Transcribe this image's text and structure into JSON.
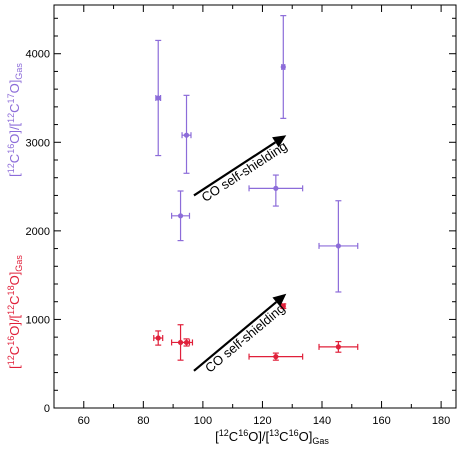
{
  "chart_data": {
    "type": "scatter",
    "xlabel": {
      "base": "[",
      "sup1": "12",
      "mid1": "C",
      "sup2": "16",
      "mid2": "O]/[",
      "sup3": "13",
      "mid3": "C",
      "sup4": "16",
      "mid4": "O]",
      "sub": "Gas"
    },
    "ylabel_purple": {
      "base": "[",
      "sup1": "12",
      "mid1": "C",
      "sup2": "16",
      "mid2": "O]/[",
      "sup3": "12",
      "mid3": "C",
      "sup4": "17",
      "mid4": "O]",
      "sub": "Gas"
    },
    "ylabel_red": {
      "base": "[",
      "sup1": "12",
      "mid1": "C",
      "sup2": "16",
      "mid2": "O]/[",
      "sup3": "12",
      "mid3": "C",
      "sup4": "18",
      "mid4": "O]",
      "sub": "Gas"
    },
    "xlim": [
      50,
      185
    ],
    "ylim": [
      0,
      4550
    ],
    "x_ticks": [
      60,
      80,
      100,
      120,
      140,
      160,
      180
    ],
    "y_ticks": [
      0,
      1000,
      2000,
      3000,
      4000
    ],
    "colors": {
      "purple": "#8c6cd9",
      "red": "#e0203a",
      "axis": "#000000",
      "arrow": "#000000"
    },
    "series": [
      {
        "color": "purple",
        "points": [
          {
            "x": 85,
            "y": 3500,
            "xerr": [
              0.8,
              0.8
            ],
            "yerr": [
              650,
              650
            ]
          },
          {
            "x": 94.5,
            "y": 3080,
            "xerr": [
              1.5,
              1.5
            ],
            "yerr": [
              430,
              450
            ]
          },
          {
            "x": 127,
            "y": 3850,
            "xerr": [
              0.5,
              0.5
            ],
            "yerr": [
              580,
              580
            ]
          },
          {
            "x": 92.5,
            "y": 2170,
            "xerr": [
              3,
              3
            ],
            "yerr": [
              280,
              280
            ]
          },
          {
            "x": 124.5,
            "y": 2480,
            "xerr": [
              9,
              9
            ],
            "yerr": [
              200,
              150
            ]
          },
          {
            "x": 145.5,
            "y": 1830,
            "xerr": [
              6.5,
              6.5
            ],
            "yerr": [
              520,
              510
            ]
          }
        ]
      },
      {
        "color": "red",
        "points": [
          {
            "x": 85,
            "y": 790,
            "xerr": [
              1.5,
              1.5
            ],
            "yerr": [
              80,
              80
            ]
          },
          {
            "x": 92.5,
            "y": 740,
            "xerr": [
              3,
              3
            ],
            "yerr": [
              200,
              200
            ]
          },
          {
            "x": 94.5,
            "y": 740,
            "xerr": [
              2,
              2
            ],
            "yerr": [
              40,
              40
            ]
          },
          {
            "x": 127,
            "y": 1150,
            "xerr": [
              0.5,
              0.5
            ],
            "yerr": [
              25,
              25
            ]
          },
          {
            "x": 124.5,
            "y": 580,
            "xerr": [
              9,
              9
            ],
            "yerr": [
              40,
              40
            ]
          },
          {
            "x": 145.5,
            "y": 690,
            "xerr": [
              6.5,
              6.5
            ],
            "yerr": [
              60,
              60
            ]
          }
        ]
      }
    ],
    "annotations": [
      {
        "text": "CO self-shielding",
        "color": "purple",
        "arrow_from": [
          97,
          2400
        ],
        "arrow_to": [
          128,
          3080
        ]
      },
      {
        "text": "CO self-shielding",
        "color": "red",
        "arrow_from": [
          97,
          420
        ],
        "arrow_to": [
          128,
          1290
        ]
      }
    ]
  }
}
